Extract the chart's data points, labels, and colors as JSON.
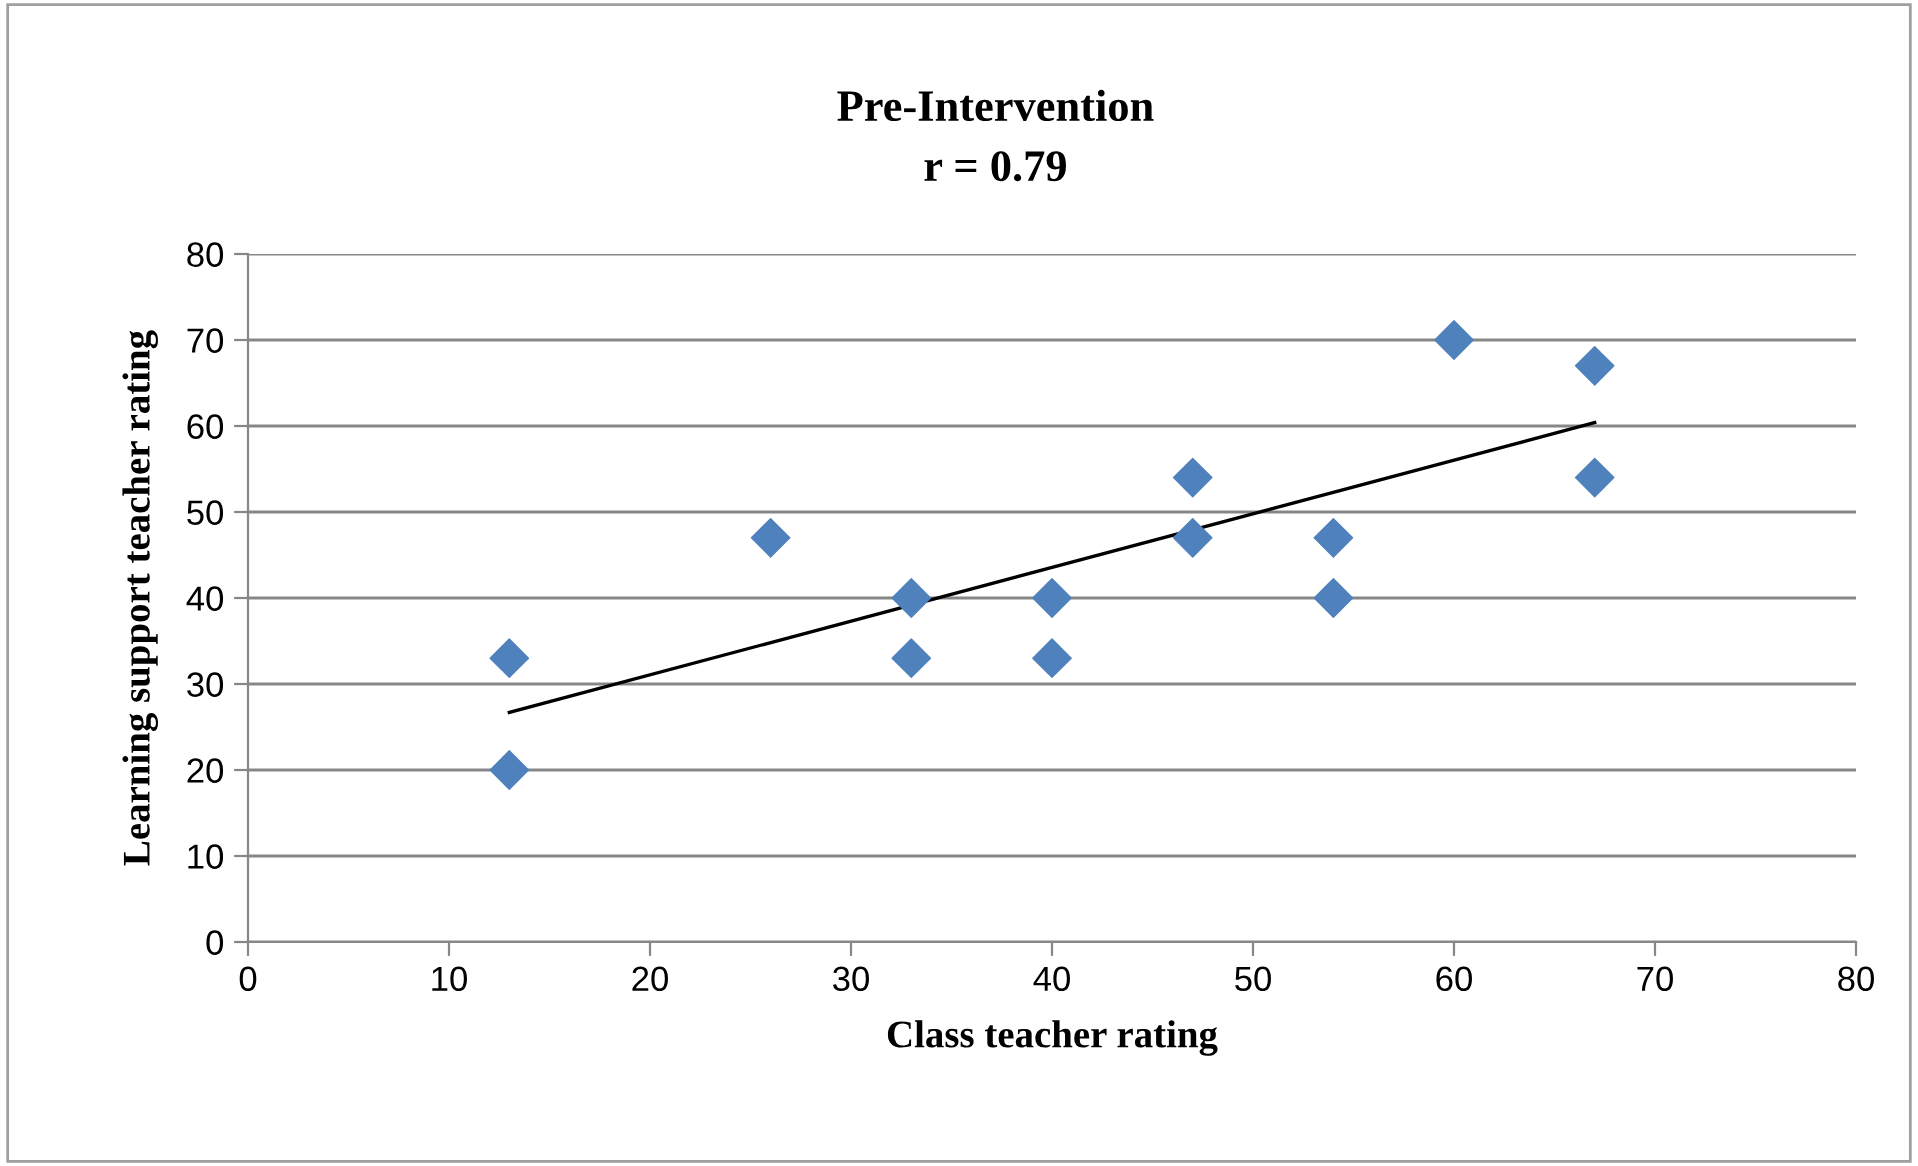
{
  "chart_data": {
    "type": "scatter",
    "title": "Pre-Intervention",
    "subtitle": "r = 0.79",
    "xlabel": "Class teacher rating",
    "ylabel": "Learning support teacher rating",
    "series": [
      {
        "color": "#4f81bd",
        "marker": "diamond",
        "x": [
          13,
          13,
          26,
          33,
          33,
          40,
          40,
          47,
          47,
          54,
          54,
          60,
          67,
          67
        ],
        "values": [
          33,
          20,
          47,
          40,
          33,
          40,
          33,
          54,
          47,
          47,
          40,
          70,
          67,
          54
        ]
      },
      {
        "type": "line",
        "color": "#000000",
        "marker": "none",
        "line_style": "solid",
        "x": [
          13,
          67
        ],
        "values": [
          26.7,
          60.4
        ]
      }
    ],
    "xlim": [
      0,
      80
    ],
    "ylim": [
      0,
      80
    ],
    "xticks": [
      0,
      10,
      20,
      30,
      40,
      50,
      60,
      70,
      80
    ],
    "yticks": [
      0,
      10,
      20,
      30,
      40,
      50,
      60,
      70,
      80
    ],
    "grid": "y",
    "legend": false
  }
}
